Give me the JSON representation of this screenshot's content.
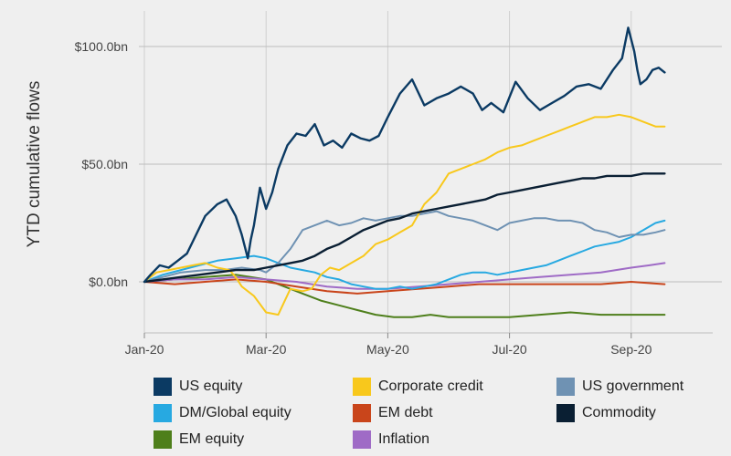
{
  "chart_data": {
    "type": "line",
    "title": "",
    "xlabel": "",
    "ylabel": "YTD cumulative flows",
    "ylim": [
      -22,
      115
    ],
    "x_ticks": [
      "Jan-20",
      "Mar-20",
      "May-20",
      "Jul-20",
      "Sep-20"
    ],
    "y_ticks": [
      {
        "value": 100,
        "label": "$100.0bn"
      },
      {
        "value": 50,
        "label": "$50.0bn"
      },
      {
        "value": 0,
        "label": "$0.0bn"
      }
    ],
    "x_range_months": [
      0,
      8.6
    ],
    "series": [
      {
        "name": "US equity",
        "color": "#0b3a63",
        "x": [
          0,
          0.1,
          0.25,
          0.4,
          0.55,
          0.7,
          0.85,
          1.0,
          1.2,
          1.35,
          1.5,
          1.6,
          1.7,
          1.75,
          1.8,
          1.9,
          2.0,
          2.1,
          2.2,
          2.35,
          2.5,
          2.65,
          2.8,
          2.95,
          3.1,
          3.25,
          3.4,
          3.55,
          3.7,
          3.85,
          4.0,
          4.2,
          4.4,
          4.6,
          4.8,
          5.0,
          5.2,
          5.4,
          5.55,
          5.7,
          5.9,
          6.1,
          6.3,
          6.5,
          6.7,
          6.9,
          7.1,
          7.3,
          7.5,
          7.7,
          7.85,
          7.95,
          8.05,
          8.1,
          8.15,
          8.25,
          8.35,
          8.45,
          8.55
        ],
        "values": [
          0,
          3,
          7,
          6,
          9,
          12,
          20,
          28,
          33,
          35,
          28,
          20,
          10,
          18,
          24,
          40,
          31,
          38,
          48,
          58,
          63,
          62,
          67,
          58,
          60,
          57,
          63,
          61,
          60,
          62,
          70,
          80,
          86,
          75,
          78,
          80,
          83,
          80,
          73,
          76,
          72,
          85,
          78,
          73,
          76,
          79,
          83,
          84,
          82,
          90,
          95,
          108,
          98,
          90,
          84,
          86,
          90,
          91,
          89
        ]
      },
      {
        "name": "Corporate credit",
        "color": "#f8c81c",
        "x": [
          0,
          0.2,
          0.4,
          0.6,
          0.8,
          1.0,
          1.2,
          1.4,
          1.5,
          1.6,
          1.7,
          1.8,
          2.0,
          2.2,
          2.4,
          2.6,
          2.75,
          2.9,
          3.05,
          3.2,
          3.4,
          3.6,
          3.8,
          4.0,
          4.2,
          4.4,
          4.6,
          4.8,
          5.0,
          5.2,
          5.4,
          5.6,
          5.8,
          6.0,
          6.2,
          6.4,
          6.6,
          6.8,
          7.0,
          7.2,
          7.4,
          7.6,
          7.8,
          8.0,
          8.2,
          8.4,
          8.55
        ],
        "values": [
          0,
          4,
          5,
          6,
          7,
          8,
          6,
          5,
          2,
          -2,
          -4,
          -6,
          -13,
          -14,
          -3,
          -4,
          -3,
          3,
          6,
          5,
          8,
          11,
          16,
          18,
          21,
          24,
          33,
          38,
          46,
          48,
          50,
          52,
          55,
          57,
          58,
          60,
          62,
          64,
          66,
          68,
          70,
          70,
          71,
          70,
          68,
          66,
          66
        ]
      },
      {
        "name": "US government",
        "color": "#6f92b3",
        "x": [
          0,
          0.3,
          0.6,
          1.0,
          1.3,
          1.6,
          1.9,
          2.0,
          2.2,
          2.4,
          2.6,
          2.8,
          3.0,
          3.2,
          3.4,
          3.6,
          3.8,
          4.0,
          4.2,
          4.4,
          4.6,
          4.8,
          5.0,
          5.2,
          5.4,
          5.6,
          5.8,
          6.0,
          6.2,
          6.4,
          6.6,
          6.8,
          7.0,
          7.2,
          7.4,
          7.6,
          7.8,
          8.0,
          8.2,
          8.4,
          8.55
        ],
        "values": [
          0,
          2,
          4,
          5,
          5,
          6,
          5,
          4,
          8,
          14,
          22,
          24,
          26,
          24,
          25,
          27,
          26,
          27,
          28,
          28,
          29,
          30,
          28,
          27,
          26,
          24,
          22,
          25,
          26,
          27,
          27,
          26,
          26,
          25,
          22,
          21,
          19,
          20,
          20,
          21,
          22
        ]
      },
      {
        "name": "Commodity",
        "color": "#0a1f33",
        "x": [
          0,
          0.3,
          0.6,
          0.9,
          1.2,
          1.5,
          1.8,
          2.0,
          2.2,
          2.4,
          2.6,
          2.8,
          3.0,
          3.2,
          3.4,
          3.6,
          3.8,
          4.0,
          4.2,
          4.4,
          4.6,
          4.8,
          5.0,
          5.2,
          5.4,
          5.6,
          5.8,
          6.0,
          6.2,
          6.4,
          6.6,
          6.8,
          7.0,
          7.2,
          7.4,
          7.6,
          7.8,
          8.0,
          8.2,
          8.4,
          8.55
        ],
        "values": [
          0,
          1,
          2,
          3,
          4,
          5,
          5,
          6,
          7,
          8,
          9,
          11,
          14,
          16,
          19,
          22,
          24,
          26,
          27,
          29,
          30,
          31,
          32,
          33,
          34,
          35,
          37,
          38,
          39,
          40,
          41,
          42,
          43,
          44,
          44,
          45,
          45,
          45,
          46,
          46,
          46
        ]
      },
      {
        "name": "DM/Global equity",
        "color": "#27a9e1",
        "x": [
          0,
          0.3,
          0.6,
          0.9,
          1.2,
          1.5,
          1.8,
          2.0,
          2.2,
          2.4,
          2.6,
          2.8,
          3.0,
          3.2,
          3.4,
          3.6,
          3.8,
          4.0,
          4.2,
          4.4,
          4.6,
          4.8,
          5.0,
          5.2,
          5.4,
          5.6,
          5.8,
          6.0,
          6.2,
          6.4,
          6.6,
          6.8,
          7.0,
          7.2,
          7.4,
          7.6,
          7.8,
          8.0,
          8.2,
          8.4,
          8.55
        ],
        "values": [
          0,
          3,
          5,
          7,
          9,
          10,
          11,
          10,
          8,
          6,
          5,
          4,
          2,
          1,
          -1,
          -2,
          -3,
          -3,
          -2,
          -3,
          -2,
          -1,
          1,
          3,
          4,
          4,
          3,
          4,
          5,
          6,
          7,
          9,
          11,
          13,
          15,
          16,
          17,
          19,
          22,
          25,
          26
        ]
      },
      {
        "name": "EM debt",
        "color": "#c9451b",
        "x": [
          0,
          0.5,
          1.0,
          1.5,
          2.0,
          2.5,
          3.0,
          3.5,
          4.0,
          4.5,
          5.0,
          5.5,
          6.0,
          6.5,
          7.0,
          7.5,
          8.0,
          8.55
        ],
        "values": [
          0,
          -1,
          0,
          1,
          0,
          -2,
          -4,
          -5,
          -4,
          -3,
          -2,
          -1,
          -1,
          -1,
          -1,
          -1,
          0,
          -1
        ]
      },
      {
        "name": "EM equity",
        "color": "#4e7f1b",
        "x": [
          0,
          0.5,
          1.0,
          1.5,
          2.0,
          2.3,
          2.6,
          2.9,
          3.2,
          3.5,
          3.8,
          4.1,
          4.4,
          4.7,
          5.0,
          5.5,
          6.0,
          6.5,
          7.0,
          7.5,
          8.0,
          8.55
        ],
        "values": [
          0,
          1,
          2,
          3,
          1,
          -2,
          -5,
          -8,
          -10,
          -12,
          -14,
          -15,
          -15,
          -14,
          -15,
          -15,
          -15,
          -14,
          -13,
          -14,
          -14,
          -14
        ]
      },
      {
        "name": "Inflation",
        "color": "#9f6bc6",
        "x": [
          0,
          0.5,
          1.0,
          1.5,
          2.0,
          2.5,
          3.0,
          3.5,
          4.0,
          4.5,
          5.0,
          5.5,
          6.0,
          6.5,
          7.0,
          7.5,
          8.0,
          8.3,
          8.55
        ],
        "values": [
          0,
          1,
          1,
          2,
          1,
          0,
          -2,
          -3,
          -3,
          -2,
          -1,
          0,
          1,
          2,
          3,
          4,
          6,
          7,
          8
        ]
      }
    ]
  },
  "legend": [
    {
      "label": "US equity",
      "color": "#0b3a63"
    },
    {
      "label": "Corporate credit",
      "color": "#f8c81c"
    },
    {
      "label": "US government",
      "color": "#6f92b3"
    },
    {
      "label": "DM/Global equity",
      "color": "#27a9e1"
    },
    {
      "label": "EM debt",
      "color": "#c9451b"
    },
    {
      "label": "Commodity",
      "color": "#0a1f33"
    },
    {
      "label": "EM equity",
      "color": "#4e7f1b"
    },
    {
      "label": "Inflation",
      "color": "#9f6bc6"
    }
  ]
}
